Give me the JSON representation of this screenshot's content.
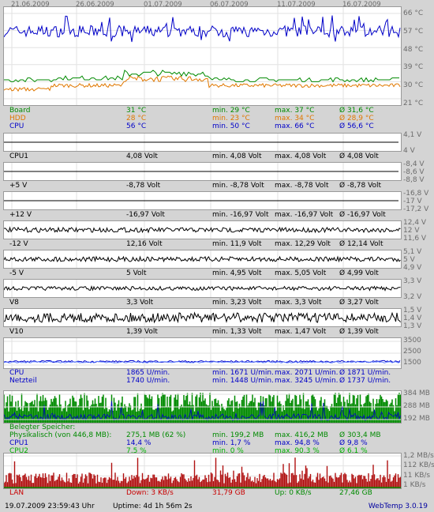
{
  "dates": [
    "21.06.2009",
    "26.06.2009",
    "01.07.2009",
    "06.07.2009",
    "11.07.2009",
    "16.07.2009"
  ],
  "temp": {
    "yticks": [
      "66 °C",
      "57 °C",
      "48 °C",
      "39 °C",
      "30 °C",
      "21 °C"
    ],
    "rows": [
      {
        "name": "Board",
        "cur": "31 °C",
        "min": "min. 29 °C",
        "max": "max. 37 °C",
        "avg": "Ø 31,6 °C",
        "color": "#008a00"
      },
      {
        "name": "HDD",
        "cur": "28 °C",
        "min": "min. 23 °C",
        "max": "max. 34 °C",
        "avg": "Ø 28,9 °C",
        "color": "#e07800"
      },
      {
        "name": "CPU",
        "cur": "56 °C",
        "min": "min. 50 °C",
        "max": "max. 66 °C",
        "avg": "Ø 56,6 °C",
        "color": "#0000c8"
      }
    ]
  },
  "volts": [
    {
      "name": "CPU1",
      "cur": "4,08 Volt",
      "min": "min. 4,08 Volt",
      "max": "max. 4,08 Volt",
      "avg": "Ø 4,08 Volt",
      "yticks": [
        "4,1 V",
        "4 V"
      ]
    },
    {
      "name": "+5 V",
      "cur": "-8,78 Volt",
      "min": "min. -8,78 Volt",
      "max": "max. -8,78 Volt",
      "avg": "Ø -8,78 Volt",
      "yticks": [
        "-8,4 V",
        "-8,6 V",
        "-8,8 V"
      ]
    },
    {
      "name": "+12 V",
      "cur": "-16,97 Volt",
      "min": "min. -16,97 Volt",
      "max": "max. -16,97 Volt",
      "avg": "Ø -16,97 Volt",
      "yticks": [
        "-16,8 V",
        "-17 V",
        "-17,2 V"
      ]
    },
    {
      "name": "-12 V",
      "cur": "12,16 Volt",
      "min": "min. 11,9 Volt",
      "max": "max. 12,29 Volt",
      "avg": "Ø 12,14 Volt",
      "yticks": [
        "12,4 V",
        "12 V",
        "11,6 V"
      ]
    },
    {
      "name": "-5 V",
      "cur": "5 Volt",
      "min": "min. 4,95 Volt",
      "max": "max. 5,05 Volt",
      "avg": "Ø 4,99 Volt",
      "yticks": [
        "5,1 V",
        "5 V",
        "4,9 V"
      ]
    },
    {
      "name": "V8",
      "cur": "3,3 Volt",
      "min": "min. 3,23 Volt",
      "max": "max. 3,3 Volt",
      "avg": "Ø 3,27 Volt",
      "yticks": [
        "3,3 V",
        "3,2 V"
      ]
    },
    {
      "name": "V10",
      "cur": "1,39 Volt",
      "min": "min. 1,33 Volt",
      "max": "max. 1,47 Volt",
      "avg": "Ø 1,39 Volt",
      "yticks": [
        "1,5 V",
        "1,4 V",
        "1,3 V"
      ]
    }
  ],
  "fan": {
    "yticks": [
      "3500",
      "2500",
      "1500"
    ],
    "rows": [
      {
        "name": "CPU",
        "cur": "1865 U/min.",
        "min": "min. 1671 U/min.",
        "max": "max. 2071 U/min.",
        "avg": "Ø 1871 U/min.",
        "color": "#0000c8"
      },
      {
        "name": "Netzteil",
        "cur": "1740 U/min.",
        "min": "min. 1448 U/min.",
        "max": "max. 3245 U/min.",
        "avg": "Ø 1737 U/min.",
        "color": "#0000c8"
      }
    ]
  },
  "mem": {
    "yticks": [
      "384 MB",
      "288 MB",
      "192 MB"
    ],
    "header": "Belegter Speicher:",
    "rows": [
      {
        "name": "Physikalisch (von 446,8 MB):",
        "cur": "275,1 MB (62 %)",
        "min": "min. 199,2 MB",
        "max": "max. 416,2 MB",
        "avg": "Ø 303,4 MB",
        "color": "#008a00"
      },
      {
        "name": "CPU1",
        "cur": "14,4 %",
        "min": "min. 1,7 %",
        "max": "max. 94,8 %",
        "avg": "Ø 9,8 %",
        "color": "#0000c8"
      },
      {
        "name": "CPU2",
        "cur": "7,5 %",
        "min": "min. 0 %",
        "max": "max. 90,3 %",
        "avg": "Ø 6,1 %",
        "color": "#00b400"
      }
    ]
  },
  "lan": {
    "yticks": [
      "1,2 MB/s",
      "112 KB/s",
      "11 KB/s",
      "1 KB/s"
    ],
    "name": "LAN",
    "down": "Down: 3 KB/s",
    "down_total": "31,79 GB",
    "up": "Up: 0 KB/s",
    "up_total": "27,46 GB"
  },
  "footer": {
    "datetime": "19.07.2009 23:59:43 Uhr",
    "uptime": "Uptime: 4d 1h 56m 2s",
    "brand": "WebTemp 3.0.19"
  },
  "colors": {
    "green": "#008a00",
    "orange": "#e07800",
    "blue": "#0000c8",
    "red": "#c80000"
  }
}
